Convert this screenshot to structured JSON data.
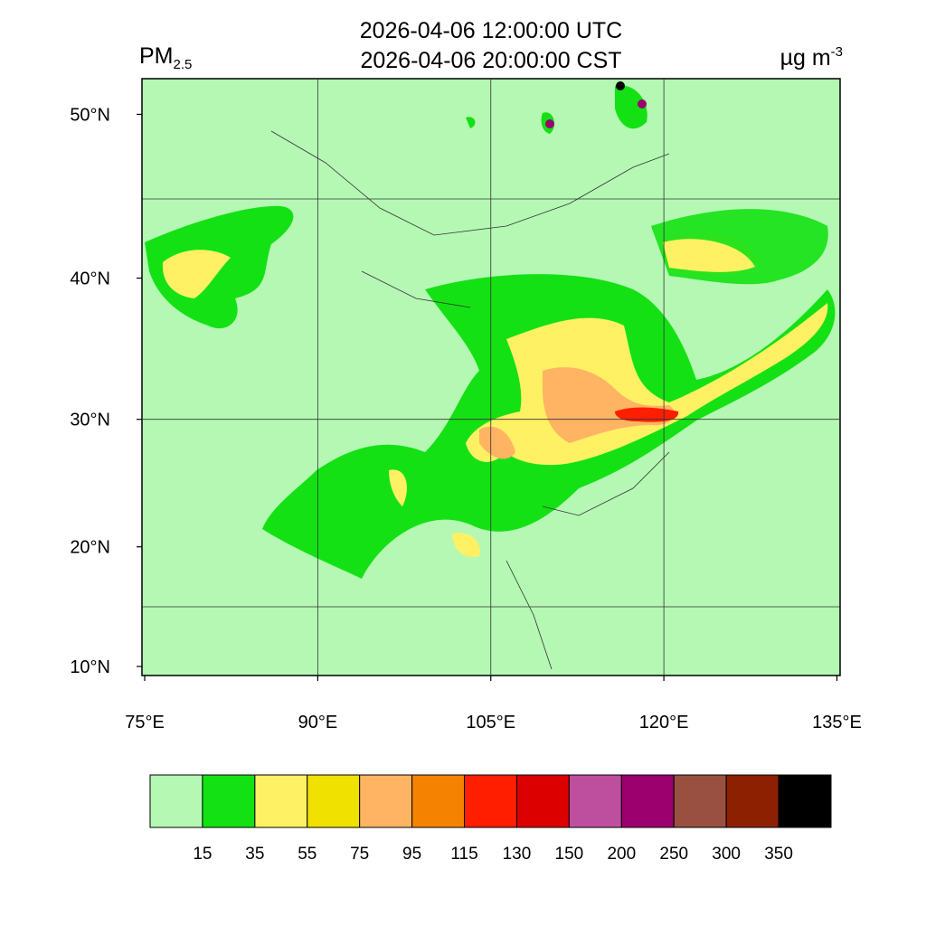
{
  "title_lines": [
    "2026-04-06 12:00:00 UTC",
    "2026-04-06 20:00:00 CST"
  ],
  "variable": {
    "name": "PM",
    "subscript": "2.5"
  },
  "units": {
    "text": "µg m",
    "superscript": "-3"
  },
  "lat_ticks": [
    {
      "value": 10,
      "label": "10°N"
    },
    {
      "value": 20,
      "label": "20°N"
    },
    {
      "value": 30,
      "label": "30°N"
    },
    {
      "value": 40,
      "label": "40°N"
    },
    {
      "value": 50,
      "label": "50°N"
    }
  ],
  "lon_ticks": [
    {
      "value": 75,
      "label": "75°E"
    },
    {
      "value": 90,
      "label": "90°E"
    },
    {
      "value": 105,
      "label": "105°E"
    },
    {
      "value": 120,
      "label": "120°E"
    },
    {
      "value": 135,
      "label": "135°E"
    }
  ],
  "colorbar": {
    "colors": [
      "#b4f8b4",
      "#14e114",
      "#fff064",
      "#f0e100",
      "#ffb464",
      "#f58200",
      "#ff1e00",
      "#dc0000",
      "#bd4f9e",
      "#9b006e",
      "#9a5040",
      "#8c2000",
      "#000000"
    ],
    "levels": [
      15,
      35,
      55,
      75,
      95,
      115,
      130,
      150,
      200,
      250,
      300,
      350
    ]
  }
}
